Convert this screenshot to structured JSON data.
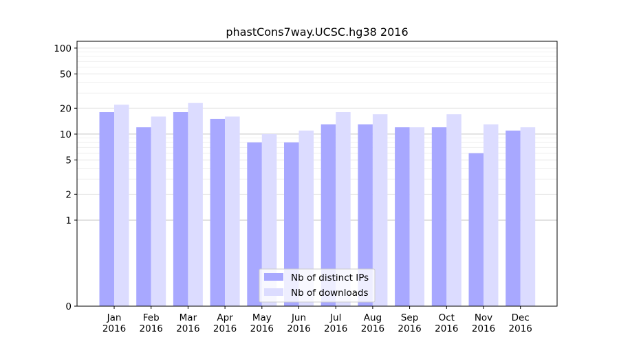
{
  "chart_data": {
    "type": "bar",
    "title": "phastCons7way.UCSC.hg38 2016",
    "xlabel": "",
    "ylabel": "",
    "yscale": "symlog",
    "ylim": [
      0,
      120
    ],
    "yticks": [
      0,
      1,
      2,
      5,
      10,
      20,
      50,
      100
    ],
    "grid": true,
    "legend_position": "bottom-center",
    "categories": [
      [
        "Jan",
        "2016"
      ],
      [
        "Feb",
        "2016"
      ],
      [
        "Mar",
        "2016"
      ],
      [
        "Apr",
        "2016"
      ],
      [
        "May",
        "2016"
      ],
      [
        "Jun",
        "2016"
      ],
      [
        "Jul",
        "2016"
      ],
      [
        "Aug",
        "2016"
      ],
      [
        "Sep",
        "2016"
      ],
      [
        "Oct",
        "2016"
      ],
      [
        "Nov",
        "2016"
      ],
      [
        "Dec",
        "2016"
      ]
    ],
    "series": [
      {
        "name": "Nb of distinct IPs",
        "color": "#a8a8ff",
        "values": [
          18,
          12,
          18,
          15,
          8,
          8,
          13,
          13,
          12,
          12,
          6,
          11
        ]
      },
      {
        "name": "Nb of downloads",
        "color": "#dcdcff",
        "values": [
          22,
          16,
          23,
          16,
          10,
          11,
          18,
          17,
          12,
          17,
          13,
          12
        ]
      }
    ]
  }
}
